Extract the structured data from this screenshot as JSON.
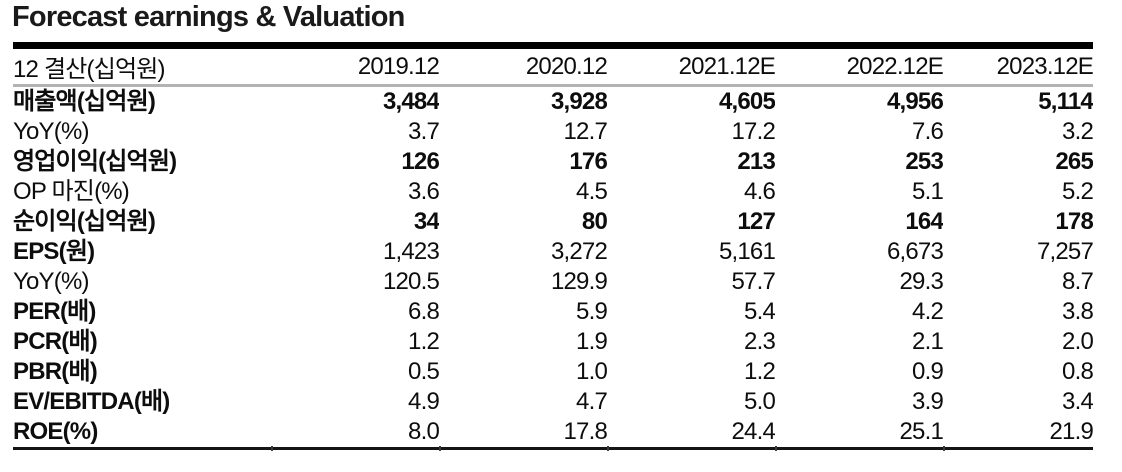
{
  "title": "Forecast earnings & Valuation",
  "colors": {
    "top_rule": "#000000",
    "header_rule": "#b3b3b3",
    "bottom_rule": "#141414",
    "text": "#0d0d0d"
  },
  "table": {
    "header": {
      "label": "12 결산(십억원)",
      "columns": [
        "2019.12",
        "2020.12",
        "2021.12E",
        "2022.12E",
        "2023.12E"
      ]
    },
    "rows": [
      {
        "label": "매출액(십억원)",
        "label_bold": true,
        "values_bold": true,
        "values": [
          "3,484",
          "3,928",
          "4,605",
          "4,956",
          "5,114"
        ]
      },
      {
        "label": "YoY(%)",
        "label_bold": false,
        "values_bold": false,
        "values": [
          "3.7",
          "12.7",
          "17.2",
          "7.6",
          "3.2"
        ]
      },
      {
        "label": "영업이익(십억원)",
        "label_bold": true,
        "values_bold": true,
        "values": [
          "126",
          "176",
          "213",
          "253",
          "265"
        ]
      },
      {
        "label": "OP 마진(%)",
        "label_bold": false,
        "values_bold": false,
        "values": [
          "3.6",
          "4.5",
          "4.6",
          "5.1",
          "5.2"
        ]
      },
      {
        "label": "순이익(십억원)",
        "label_bold": true,
        "values_bold": true,
        "values": [
          "34",
          "80",
          "127",
          "164",
          "178"
        ]
      },
      {
        "label": "EPS(원)",
        "label_bold": true,
        "values_bold": false,
        "values": [
          "1,423",
          "3,272",
          "5,161",
          "6,673",
          "7,257"
        ]
      },
      {
        "label": "YoY(%)",
        "label_bold": false,
        "values_bold": false,
        "values": [
          "120.5",
          "129.9",
          "57.7",
          "29.3",
          "8.7"
        ]
      },
      {
        "label": "PER(배)",
        "label_bold": true,
        "values_bold": false,
        "values": [
          "6.8",
          "5.9",
          "5.4",
          "4.2",
          "3.8"
        ]
      },
      {
        "label": "PCR(배)",
        "label_bold": true,
        "values_bold": false,
        "values": [
          "1.2",
          "1.9",
          "2.3",
          "2.1",
          "2.0"
        ]
      },
      {
        "label": "PBR(배)",
        "label_bold": true,
        "values_bold": false,
        "values": [
          "0.5",
          "1.0",
          "1.2",
          "0.9",
          "0.8"
        ]
      },
      {
        "label": "EV/EBITDA(배)",
        "label_bold": true,
        "values_bold": false,
        "values": [
          "4.9",
          "4.7",
          "5.0",
          "3.9",
          "3.4"
        ]
      },
      {
        "label": "ROE(%)",
        "label_bold": true,
        "values_bold": false,
        "values": [
          "8.0",
          "17.8",
          "24.4",
          "25.1",
          "21.9"
        ]
      }
    ]
  },
  "chart_data": {
    "type": "table",
    "title": "Forecast earnings & Valuation",
    "categories": [
      "2019.12",
      "2020.12",
      "2021.12E",
      "2022.12E",
      "2023.12E"
    ],
    "series": [
      {
        "name": "매출액(십억원)",
        "values": [
          3484,
          3928,
          4605,
          4956,
          5114
        ]
      },
      {
        "name": "YoY(%)",
        "values": [
          3.7,
          12.7,
          17.2,
          7.6,
          3.2
        ]
      },
      {
        "name": "영업이익(십억원)",
        "values": [
          126,
          176,
          213,
          253,
          265
        ]
      },
      {
        "name": "OP 마진(%)",
        "values": [
          3.6,
          4.5,
          4.6,
          5.1,
          5.2
        ]
      },
      {
        "name": "순이익(십억원)",
        "values": [
          34,
          80,
          127,
          164,
          178
        ]
      },
      {
        "name": "EPS(원)",
        "values": [
          1423,
          3272,
          5161,
          6673,
          7257
        ]
      },
      {
        "name": "YoY(%)",
        "values": [
          120.5,
          129.9,
          57.7,
          29.3,
          8.7
        ]
      },
      {
        "name": "PER(배)",
        "values": [
          6.8,
          5.9,
          5.4,
          4.2,
          3.8
        ]
      },
      {
        "name": "PCR(배)",
        "values": [
          1.2,
          1.9,
          2.3,
          2.1,
          2.0
        ]
      },
      {
        "name": "PBR(배)",
        "values": [
          0.5,
          1.0,
          1.2,
          0.9,
          0.8
        ]
      },
      {
        "name": "EV/EBITDA(배)",
        "values": [
          4.9,
          4.7,
          5.0,
          3.9,
          3.4
        ]
      },
      {
        "name": "ROE(%)",
        "values": [
          8.0,
          17.8,
          24.4,
          25.1,
          21.9
        ]
      }
    ]
  }
}
